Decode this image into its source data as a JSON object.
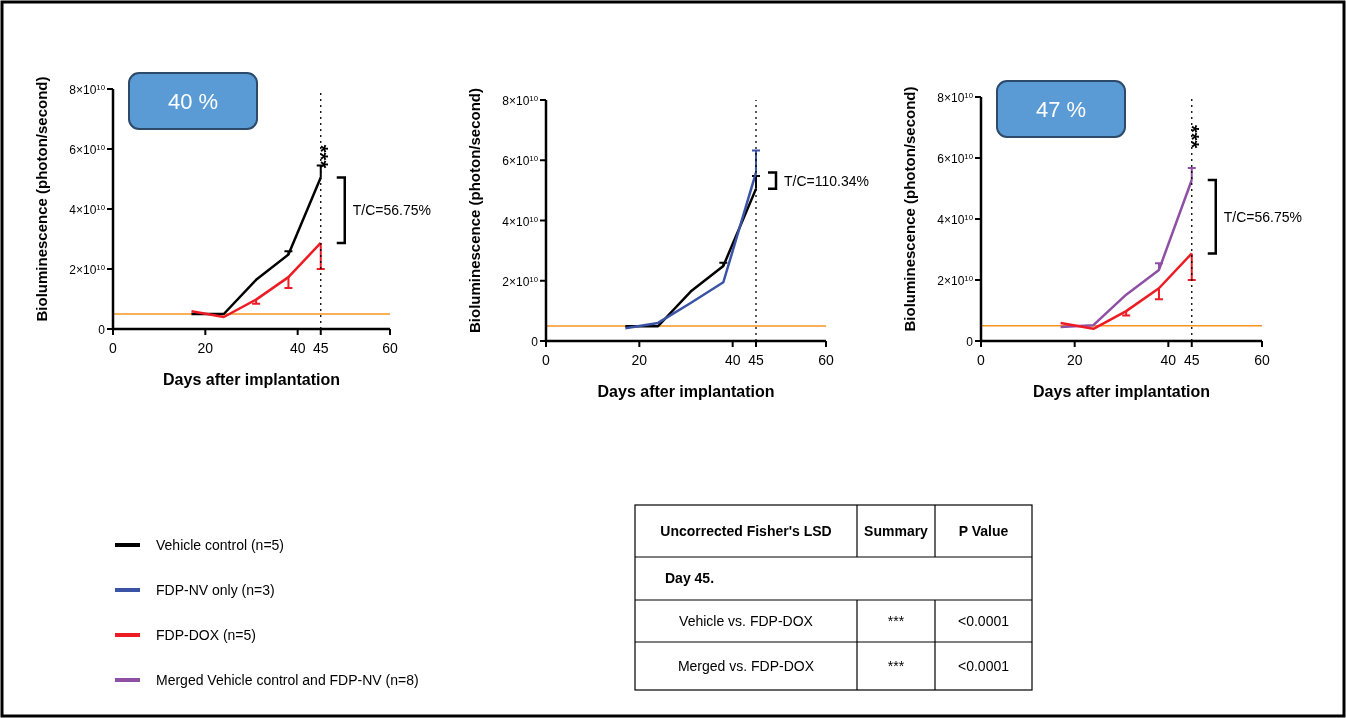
{
  "chart_data": [
    {
      "type": "line",
      "xlabel": "Days after implantation",
      "ylabel": "Bioluminescence (photon/second)",
      "xlim": [
        0,
        60
      ],
      "xticks": [
        0,
        20,
        40,
        45,
        60
      ],
      "ylim": [
        0,
        80000000000.0
      ],
      "yticks": [
        {
          "value": 0,
          "label": "0"
        },
        {
          "value": 20000000000.0,
          "label": "2×10$^{10}$"
        },
        {
          "value": 40000000000.0,
          "label": "4×10$^{10}$"
        },
        {
          "value": 60000000000.0,
          "label": "6×10$^{10}$"
        },
        {
          "value": 80000000000.0,
          "label": "8×10$^{10}$"
        }
      ],
      "legend": "bottom left",
      "series": [
        {
          "name": "Vehicle control (n=5)",
          "color": "#000000",
          "x": [
            17,
            24,
            31,
            38,
            45
          ],
          "values": [
            5000000000.0,
            5000000000.0,
            16400000000.0,
            24800000000.0,
            50500000000.0
          ],
          "errors": [
            null,
            null,
            null,
            [
              24800000000.0,
              25900000000.0
            ],
            [
              50500000000.0,
              54500000000.0
            ]
          ]
        },
        {
          "name": "FDP-DOX (n=5)",
          "color": "#ed1c24",
          "x": [
            17,
            24,
            31,
            38,
            45
          ],
          "values": [
            5900000000.0,
            4000000000.0,
            9800000000.0,
            17300000000.0,
            28700000000.0
          ],
          "errors": [
            null,
            null,
            [
              8400000000.0,
              9800000000.0
            ],
            [
              13700000000.0,
              17300000000.0
            ],
            [
              20000000000.0,
              28700000000.0
            ]
          ]
        }
      ],
      "ref_lines": [
        {
          "axis": "y",
          "value": 5000000000.0,
          "color": "#f7941d",
          "line_style": "solid"
        },
        {
          "axis": "x",
          "value": 45,
          "color": "#000000",
          "line_style": "dotted"
        }
      ],
      "annotations": [
        "40 %",
        "T/C=56.75%",
        "***"
      ]
    },
    {
      "type": "line",
      "xlabel": "Days after implantation",
      "ylabel": "Bioluminescence (photon/second)",
      "xlim": [
        0,
        60
      ],
      "xticks": [
        0,
        20,
        40,
        45,
        60
      ],
      "ylim": [
        0,
        80000000000.0
      ],
      "yticks": [
        {
          "value": 0,
          "label": "0"
        },
        {
          "value": 20000000000.0,
          "label": "2×10$^{10}$"
        },
        {
          "value": 40000000000.0,
          "label": "4×10$^{10}$"
        },
        {
          "value": 60000000000.0,
          "label": "6×10$^{10}$"
        },
        {
          "value": 80000000000.0,
          "label": "8×10$^{10}$"
        }
      ],
      "legend": "bottom left",
      "series": [
        {
          "name": "Vehicle control (n=5)",
          "color": "#000000",
          "x": [
            17,
            24,
            31,
            38,
            45
          ],
          "values": [
            4900000000.0,
            4900000000.0,
            16400000000.0,
            24900000000.0,
            50500000000.0
          ],
          "errors": [
            null,
            null,
            null,
            [
              24900000000.0,
              26000000000.0
            ],
            [
              50500000000.0,
              54800000000.0
            ]
          ]
        },
        {
          "name": "FDP-NV only (n=3)",
          "color": "#3a53a4",
          "x": [
            17,
            24,
            31,
            38,
            45
          ],
          "values": [
            4200000000.0,
            6000000000.0,
            12600000000.0,
            19500000000.0,
            55900000000.0
          ],
          "errors": [
            null,
            null,
            null,
            null,
            [
              55900000000.0,
              63200000000.0
            ]
          ]
        }
      ],
      "ref_lines": [
        {
          "axis": "y",
          "value": 5000000000.0,
          "color": "#f7941d",
          "line_style": "solid"
        },
        {
          "axis": "x",
          "value": 45,
          "color": "#000000",
          "line_style": "dotted"
        }
      ],
      "annotations": [
        "T/C=110.34%"
      ]
    },
    {
      "type": "line",
      "xlabel": "Days after implantation",
      "ylabel": "Bioluminescence (photon/second)",
      "xlim": [
        0,
        60
      ],
      "xticks": [
        0,
        20,
        40,
        45,
        60
      ],
      "ylim": [
        0,
        80000000000.0
      ],
      "yticks": [
        {
          "value": 0,
          "label": "0"
        },
        {
          "value": 20000000000.0,
          "label": "2×10$^{10}$"
        },
        {
          "value": 40000000000.0,
          "label": "4×10$^{10}$"
        },
        {
          "value": 60000000000.0,
          "label": "6×10$^{10}$"
        },
        {
          "value": 80000000000.0,
          "label": "8×10$^{10}$"
        }
      ],
      "legend": "bottom left",
      "series": [
        {
          "name": "Merged Vehicle control and FDP-NV (n=8)",
          "color": "#8e4fa5",
          "x": [
            17,
            24,
            31,
            38,
            45
          ],
          "values": [
            4600000000.0,
            5200000000.0,
            15200000000.0,
            23300000000.0,
            52800000000.0
          ],
          "errors": [
            null,
            null,
            null,
            [
              23300000000.0,
              25500000000.0
            ],
            [
              52800000000.0,
              56700000000.0
            ]
          ]
        },
        {
          "name": "FDP-DOX (n=5)",
          "color": "#ed1c24",
          "x": [
            17,
            24,
            31,
            38,
            45
          ],
          "values": [
            5900000000.0,
            4000000000.0,
            9800000000.0,
            17300000000.0,
            28700000000.0
          ],
          "errors": [
            null,
            null,
            [
              8400000000.0,
              9800000000.0
            ],
            [
              13700000000.0,
              17300000000.0
            ],
            [
              20000000000.0,
              28700000000.0
            ]
          ]
        }
      ],
      "ref_lines": [
        {
          "axis": "y",
          "value": 5000000000.0,
          "color": "#f7941d",
          "line_style": "solid"
        },
        {
          "axis": "x",
          "value": 45,
          "color": "#000000",
          "line_style": "dotted"
        }
      ],
      "annotations": [
        "47 %",
        "T/C=56.75%",
        "***"
      ]
    },
    {
      "type": "other",
      "annotations": [
        "Uncorrected Fisher's LSD",
        "Summary",
        "P Value",
        "Day 45.",
        "Vehicle vs. FDP-DOX",
        "***",
        "<0.0001",
        "Merged vs. FDP-DOX",
        "***",
        "<0.0001"
      ]
    }
  ]
}
